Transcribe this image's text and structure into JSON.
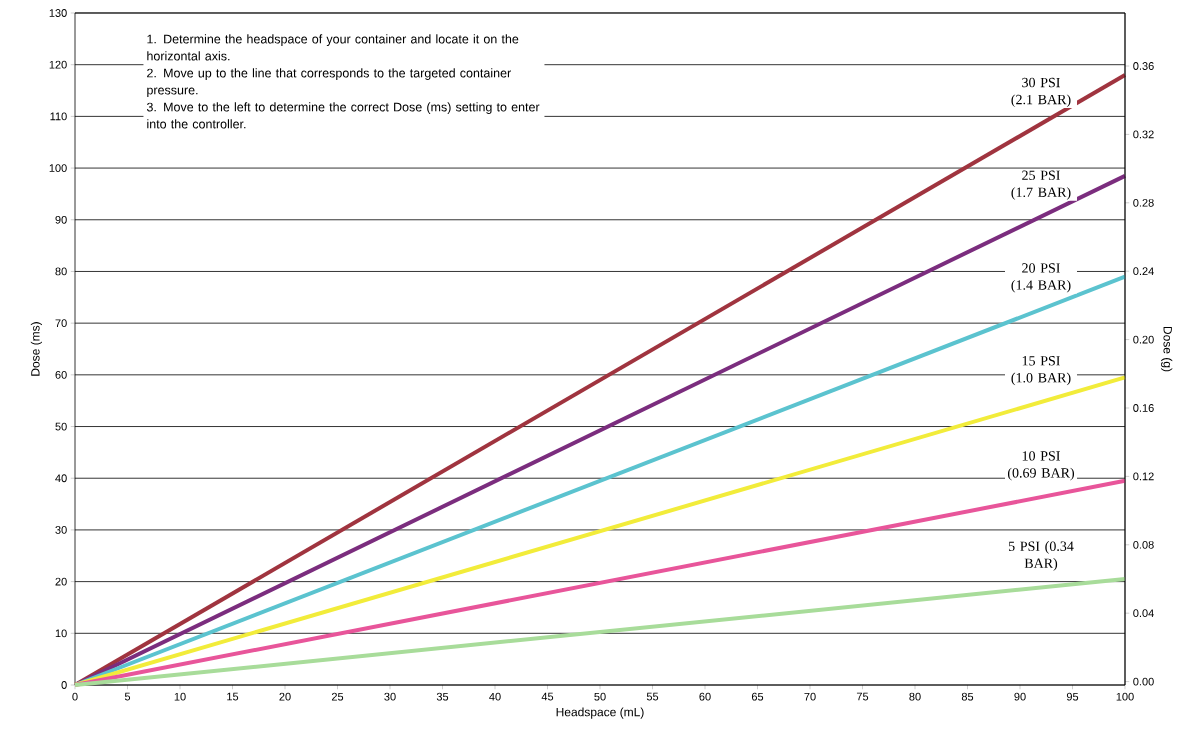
{
  "chart_data": {
    "type": "line",
    "xlabel": "Headspace (mL)",
    "ylabel": "Dose (ms)",
    "y2label": "Dose (g)",
    "annotations": [
      "1. Determine the headspace of your container and locate it on the horizontal axis.",
      "2. Move up to the line that corresponds to the targeted container pressure.",
      "3. Move to the left to determine the correct Dose (ms) setting to enter into the controller."
    ],
    "x": [
      0,
      100
    ],
    "series": [
      {
        "name": "30 PSI (2.1 BAR)",
        "color": "#a0343f",
        "values": [
          0,
          118
        ]
      },
      {
        "name": "25 PSI (1.7 BAR)",
        "color": "#7b2d7e",
        "values": [
          0,
          98.5
        ]
      },
      {
        "name": "20 PSI (1.4 BAR)",
        "color": "#5bc3cf",
        "values": [
          0,
          79
        ]
      },
      {
        "name": "15 PSI (1.0 BAR)",
        "color": "#f2ec3a",
        "values": [
          0,
          59.5
        ]
      },
      {
        "name": "10 PSI (0.69 BAR)",
        "color": "#e8559a",
        "values": [
          0,
          39.5
        ]
      },
      {
        "name": "5 PSI (0.34 BAR)",
        "color": "#a8dc9a",
        "values": [
          0,
          20.5
        ]
      }
    ],
    "xlim": [
      0,
      100
    ],
    "ylim": [
      0,
      130
    ],
    "xticks": [
      0,
      5,
      10,
      15,
      20,
      25,
      30,
      35,
      40,
      45,
      50,
      55,
      60,
      65,
      70,
      75,
      80,
      85,
      90,
      95,
      100
    ],
    "yticks": [
      0,
      10,
      20,
      30,
      40,
      50,
      60,
      70,
      80,
      90,
      100,
      110,
      120,
      130
    ],
    "y2lim": [
      -0.002,
      0.391
    ],
    "y2ticks": [
      {
        "value": 0,
        "label": "0.00"
      },
      {
        "value": 0.04,
        "label": "0.04"
      },
      {
        "value": 0.08,
        "label": "0.08"
      },
      {
        "value": 0.12,
        "label": "0.12"
      },
      {
        "value": 0.16,
        "label": "0.16"
      },
      {
        "value": 0.2,
        "label": "0.20"
      },
      {
        "value": 0.24,
        "label": "0.24"
      },
      {
        "value": 0.28,
        "label": "0.28"
      },
      {
        "value": 0.32,
        "label": "0.32"
      },
      {
        "value": 0.36,
        "label": "0.36"
      }
    ],
    "grid": "y",
    "legend": false,
    "marker": "none",
    "line_style": "solid"
  }
}
